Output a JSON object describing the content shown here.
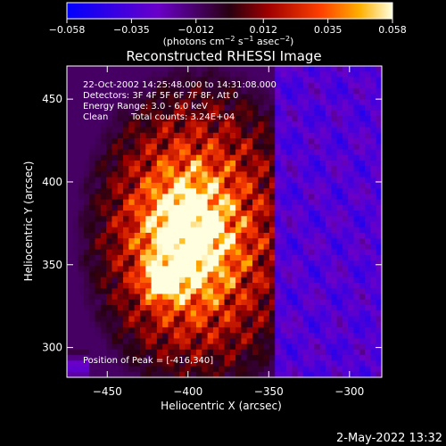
{
  "chart_data": {
    "type": "heatmap",
    "title": "Reconstructed RHESSI Image",
    "xlabel": "Heliocentric X (arcsec)",
    "ylabel": "Heliocentric Y (arcsec)",
    "xlim": [
      -475,
      -280
    ],
    "ylim": [
      282,
      470
    ],
    "x_ticks": [
      -450,
      -400,
      -350,
      -300
    ],
    "y_ticks": [
      300,
      350,
      400,
      450
    ],
    "colorbar": {
      "min": -0.058,
      "max": 0.058,
      "ticks": [
        -0.058,
        -0.035,
        -0.012,
        0.012,
        0.035,
        0.058
      ],
      "tick_labels": [
        "−0.058",
        "−0.035",
        "−0.012",
        "0.012",
        "0.035",
        "0.058"
      ],
      "unit_main": "(photons cm",
      "unit_exp1": "−2",
      "unit_mid": " s",
      "unit_exp2": "−1",
      "unit_mid2": " asec",
      "unit_exp3": "−2",
      "unit_close": ")"
    },
    "annotations": {
      "time": "22-Oct-2002 14:25:48.000 to 14:31:08.000",
      "detectors": "Detectors: 3F 4F 5F 6F 7F 8F, Att 0",
      "energy": "Energy Range: 3.0 - 6.0 keV",
      "clean": "Clean",
      "counts": "Total counts: 3.24E+04",
      "peak": "Position of Peak = [-416,340]"
    },
    "peak": [
      -416,
      340
    ],
    "tick_label_x": [
      "−450",
      "−400",
      "−350",
      "−300"
    ],
    "tick_label_y": [
      "300",
      "350",
      "400",
      "450"
    ]
  },
  "footer": {
    "timestamp": "2-May-2022 13:32"
  }
}
